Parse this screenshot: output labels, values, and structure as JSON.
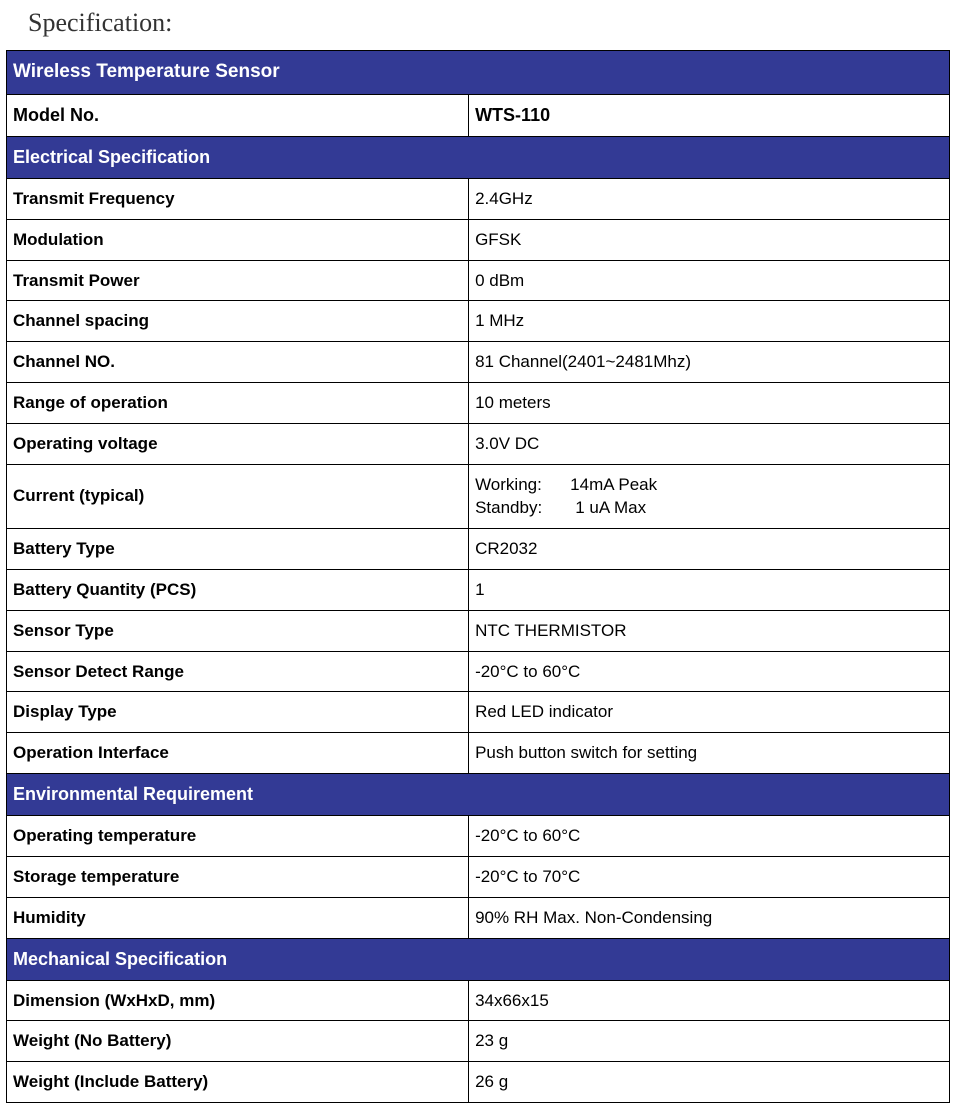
{
  "page_title": "Specification:",
  "table": {
    "main_header": "Wireless Temperature Sensor",
    "model": {
      "label": "Model No.",
      "value": "WTS-110"
    },
    "sections": [
      {
        "header": "Electrical Specification",
        "rows": [
          {
            "label": "Transmit Frequency",
            "value": "2.4GHz"
          },
          {
            "label": "Modulation",
            "value": "GFSK"
          },
          {
            "label": "Transmit Power",
            "value": "0 dBm"
          },
          {
            "label": "Channel spacing",
            "value": "1 MHz"
          },
          {
            "label": "Channel NO.",
            "value": "81 Channel(2401~2481Mhz)"
          },
          {
            "label": "Range of operation",
            "value": "10 meters"
          },
          {
            "label": "Operating voltage",
            "value": "3.0V DC"
          },
          {
            "label": "Current (typical)",
            "value": "Working:      14mA Peak\nStandby:       1 uA Max",
            "multiline": true
          },
          {
            "label": "Battery Type",
            "value": "CR2032"
          },
          {
            "label": "Battery Quantity (PCS)",
            "value": "1"
          },
          {
            "label": "Sensor Type",
            "value": "NTC THERMISTOR"
          },
          {
            "label": "Sensor Detect Range",
            "value": " -20°C to 60°C"
          },
          {
            "label": "Display Type",
            "value": "Red LED indicator"
          },
          {
            "label": "Operation Interface",
            "value": "Push button switch for setting"
          }
        ]
      },
      {
        "header": "Environmental Requirement",
        "rows": [
          {
            "label": "Operating temperature",
            "value": " -20°C to 60°C"
          },
          {
            "label": "Storage temperature",
            "value": " -20°C to 70°C"
          },
          {
            "label": "Humidity",
            "value": "90% RH Max. Non-Condensing"
          }
        ]
      },
      {
        "header": "Mechanical Specification",
        "rows": [
          {
            "label": "Dimension (WxHxD, mm)",
            "value": "34x66x15"
          },
          {
            "label": "Weight (No Battery)",
            "value": "23 g"
          },
          {
            "label": "Weight (Include Battery)",
            "value": "26 g"
          }
        ]
      }
    ]
  },
  "colors": {
    "header_bg": "#333a95",
    "header_text": "#ffffff",
    "border": "#000000",
    "text": "#000000",
    "bg": "#ffffff"
  },
  "typography": {
    "title_font": "Times New Roman",
    "title_size_pt": 20,
    "table_font": "Verdana",
    "table_size_pt": 13
  }
}
